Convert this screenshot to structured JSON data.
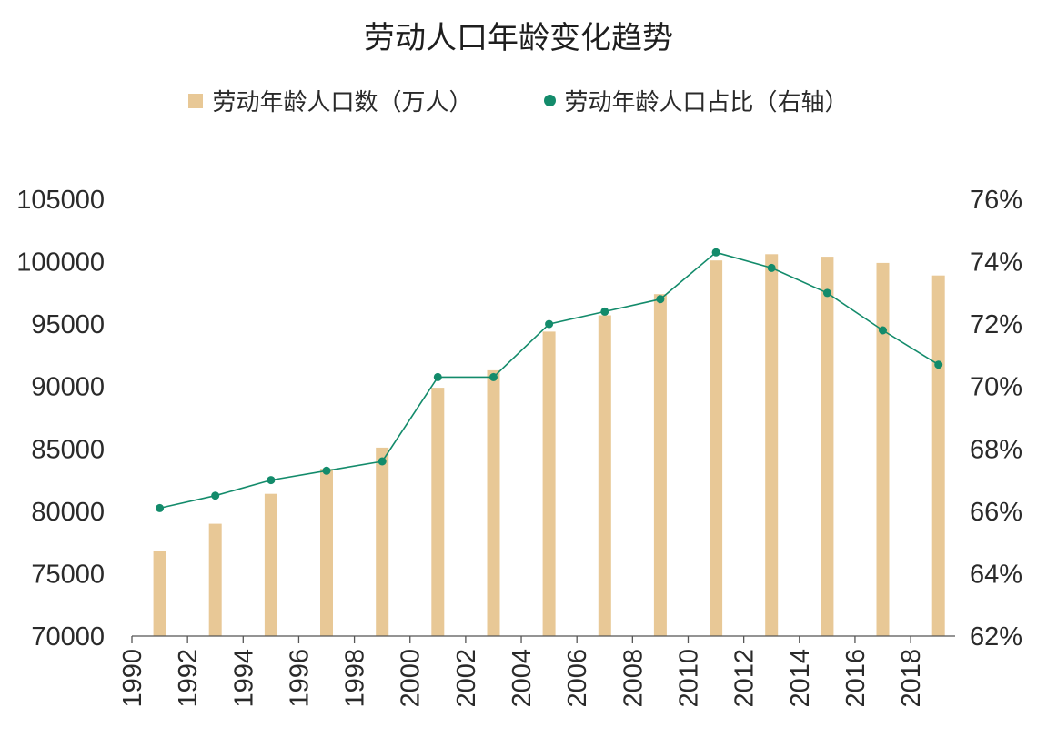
{
  "chart_data": {
    "type": "bar",
    "title": "劳动人口年龄变化趋势",
    "legend_position": "top-center",
    "grid": false,
    "x": [
      1991,
      1993,
      1995,
      1997,
      1999,
      2001,
      2003,
      2005,
      2007,
      2009,
      2011,
      2013,
      2015,
      2017,
      2019
    ],
    "x_ticks": [
      "1990",
      "1992",
      "1994",
      "1996",
      "1998",
      "2000",
      "2002",
      "2004",
      "2006",
      "2008",
      "2010",
      "2012",
      "2014",
      "2016",
      "2018"
    ],
    "xlim": [
      1990,
      2019.6
    ],
    "ylim": [
      70000,
      105000
    ],
    "y_ticks": [
      "70000",
      "75000",
      "80000",
      "85000",
      "90000",
      "95000",
      "100000",
      "105000"
    ],
    "y2lim": [
      62,
      76
    ],
    "y2_ticks": [
      "62%",
      "64%",
      "66%",
      "68%",
      "70%",
      "72%",
      "74%",
      "76%"
    ],
    "series": [
      {
        "name": "劳动年龄人口数（万人）",
        "type": "bar",
        "axis": "left",
        "color": "#E8C896",
        "values": [
          76800,
          79000,
          81400,
          83400,
          85100,
          89900,
          91300,
          94400,
          95700,
          97400,
          100100,
          100600,
          100400,
          99900,
          98900
        ]
      },
      {
        "name": "劳动年龄人口占比（右轴）",
        "type": "line",
        "axis": "right",
        "color": "#138B6B",
        "values": [
          66.1,
          66.5,
          67.0,
          67.3,
          67.6,
          70.3,
          70.3,
          72.0,
          72.4,
          72.8,
          74.3,
          73.8,
          73.0,
          71.8,
          70.7
        ]
      }
    ]
  }
}
